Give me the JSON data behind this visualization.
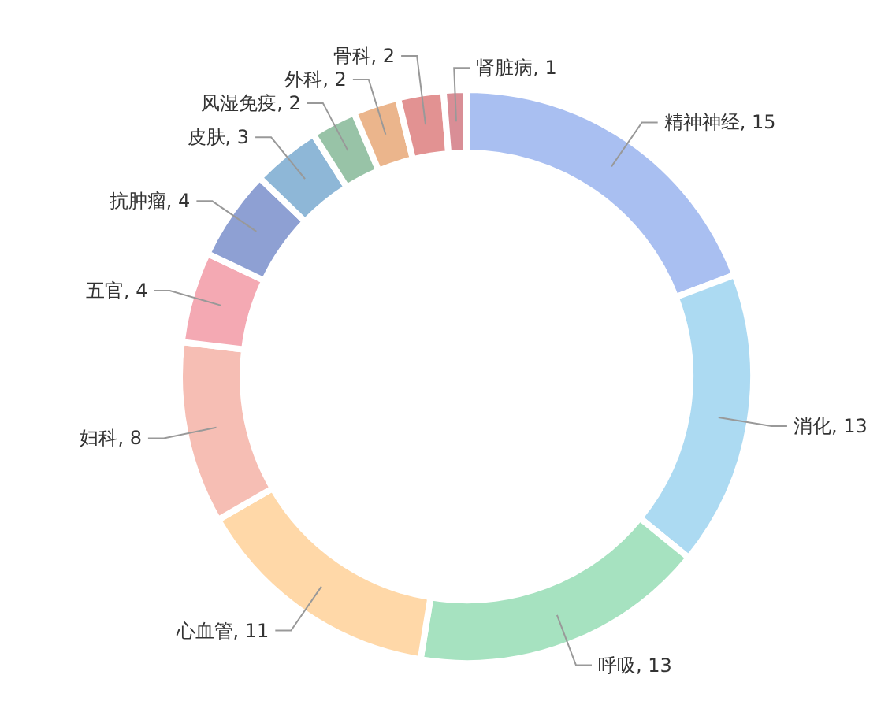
{
  "chart_data": {
    "type": "donut",
    "categories": [
      "精神神经",
      "消化",
      "呼吸",
      "心血管",
      "妇科",
      "五官",
      "抗肿瘤",
      "皮肤",
      "风湿免疫",
      "外科",
      "骨科",
      "肾脏病"
    ],
    "values": [
      15,
      13,
      13,
      11,
      8,
      4,
      4,
      3,
      2,
      2,
      2,
      1
    ],
    "value_labels": [
      ", 15",
      ", 13",
      ", 13",
      ", 11",
      ", 8",
      ", 4",
      ", 4",
      ", 3",
      ", 2",
      ", 2",
      ", 2",
      ", 1"
    ],
    "colors": [
      "#9ab4ef",
      "#9dd3f0",
      "#97ddb5",
      "#ffd199",
      "#f5b3a7",
      "#f29aa6",
      "#7a8fcb",
      "#7aaad0",
      "#86b898",
      "#e8a878",
      "#dd7f7f",
      "#d27a84"
    ]
  }
}
